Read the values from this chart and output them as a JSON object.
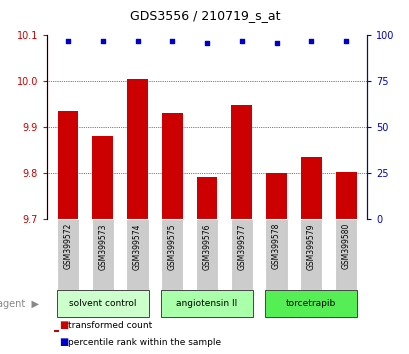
{
  "title": "GDS3556 / 210719_s_at",
  "samples": [
    "GSM399572",
    "GSM399573",
    "GSM399574",
    "GSM399575",
    "GSM399576",
    "GSM399577",
    "GSM399578",
    "GSM399579",
    "GSM399580"
  ],
  "transformed_counts": [
    9.935,
    9.882,
    10.005,
    9.932,
    9.793,
    9.948,
    9.8,
    9.835,
    9.803
  ],
  "percentile_ranks": [
    97,
    97,
    97,
    97,
    96,
    97,
    96,
    97,
    97
  ],
  "ylim_left": [
    9.7,
    10.1
  ],
  "ylim_right": [
    0,
    100
  ],
  "yticks_left": [
    9.7,
    9.8,
    9.9,
    10.0,
    10.1
  ],
  "yticks_right": [
    0,
    25,
    50,
    75,
    100
  ],
  "bar_color": "#cc0000",
  "dot_color": "#0000cc",
  "groups": [
    {
      "label": "solvent control",
      "indices": [
        0,
        1,
        2
      ],
      "color": "#ccffcc"
    },
    {
      "label": "angiotensin II",
      "indices": [
        3,
        4,
        5
      ],
      "color": "#aaffaa"
    },
    {
      "label": "torcetrapib",
      "indices": [
        6,
        7,
        8
      ],
      "color": "#55ee55"
    }
  ],
  "agent_label": "agent",
  "legend_items": [
    {
      "color": "#cc0000",
      "label": "transformed count"
    },
    {
      "color": "#0000cc",
      "label": "percentile rank within the sample"
    }
  ],
  "left_axis_color": "#cc0000",
  "right_axis_color": "#0000cc",
  "bar_bottom": 9.7,
  "gridlines": [
    9.8,
    9.9,
    10.0
  ],
  "sample_box_color": "#cccccc",
  "agent_label_color": "#888888"
}
